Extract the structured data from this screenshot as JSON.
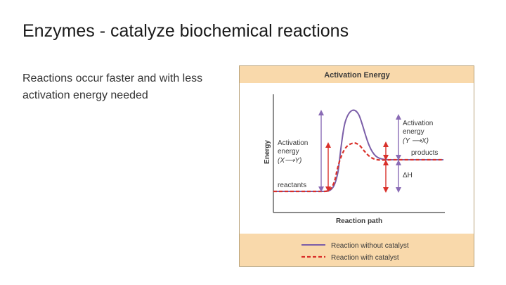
{
  "slide": {
    "title": "Enzymes - catalyze biochemical reactions",
    "body_lines": [
      "Reactions occur faster and with less",
      "activation energy needed"
    ]
  },
  "figure": {
    "title": "Activation Energy",
    "y_axis_label": "Energy",
    "x_axis_label": "Reaction path",
    "labels": {
      "activation_left_line1": "Activation",
      "activation_left_line2": "energy",
      "activation_left_line3": "(X⟶Y)",
      "activation_right_line1": "Activation",
      "activation_right_line2": "energy",
      "activation_right_line3": "(Y ⟶X)",
      "reactants": "reactants",
      "products": "products",
      "delta_h": "ΔH"
    },
    "legend": {
      "without": "Reaction without catalyst",
      "with": "Reaction with catalyst"
    },
    "colors": {
      "header_bg": "#f9d9ab",
      "legend_bg": "#f9d9ab",
      "uncatalyzed": "#7b5ea8",
      "catalyzed": "#d9302a",
      "arrow_purple": "#8a6bb5",
      "arrow_red": "#d9302a"
    }
  }
}
